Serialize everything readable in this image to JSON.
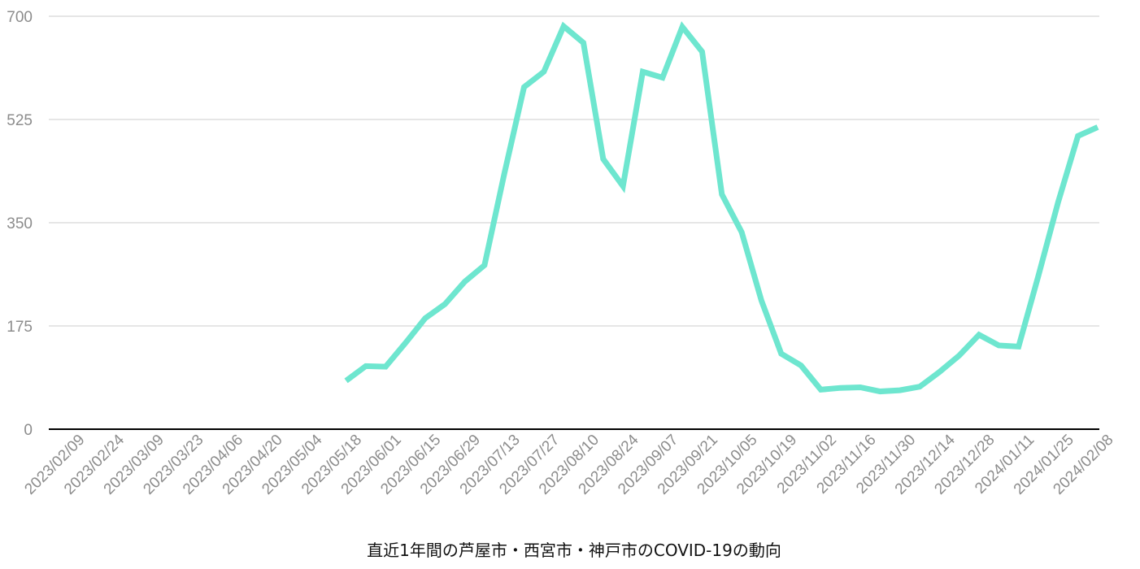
{
  "chart_data": {
    "type": "line",
    "title": "直近1年間の芦屋市・西宮市・神戸市のCOVID-19の動向",
    "xlabel": "",
    "ylabel": "",
    "ylim": [
      0,
      700
    ],
    "yticks": [
      0,
      175,
      350,
      525,
      700
    ],
    "grid": true,
    "legend": "none",
    "line_color": "#6ee6cf",
    "grid_color": "#cccccc",
    "axis_color": "#000000",
    "tick_labels": [
      "2023/02/09",
      "2023/02/24",
      "2023/03/09",
      "2023/03/23",
      "2023/04/06",
      "2023/04/20",
      "2023/05/04",
      "2023/05/18",
      "2023/06/01",
      "2023/06/15",
      "2023/06/29",
      "2023/07/13",
      "2023/07/27",
      "2023/08/10",
      "2023/08/24",
      "2023/09/07",
      "2023/09/21",
      "2023/10/05",
      "2023/10/19",
      "2023/11/02",
      "2023/11/16",
      "2023/11/30",
      "2023/12/14",
      "2023/12/28",
      "2024/01/11",
      "2024/01/25",
      "2024/02/08"
    ],
    "series": [
      {
        "values": [
          null,
          null,
          null,
          null,
          null,
          null,
          null,
          null,
          null,
          null,
          null,
          null,
          null,
          null,
          82,
          107,
          106,
          146,
          188,
          212,
          250,
          278,
          433,
          580,
          606,
          683,
          655,
          458,
          412,
          606,
          596,
          682,
          640,
          398,
          334,
          218,
          128,
          108,
          67,
          70,
          71,
          64,
          66,
          72,
          97,
          125,
          160,
          142,
          140,
          260,
          385,
          497,
          512
        ]
      }
    ]
  }
}
